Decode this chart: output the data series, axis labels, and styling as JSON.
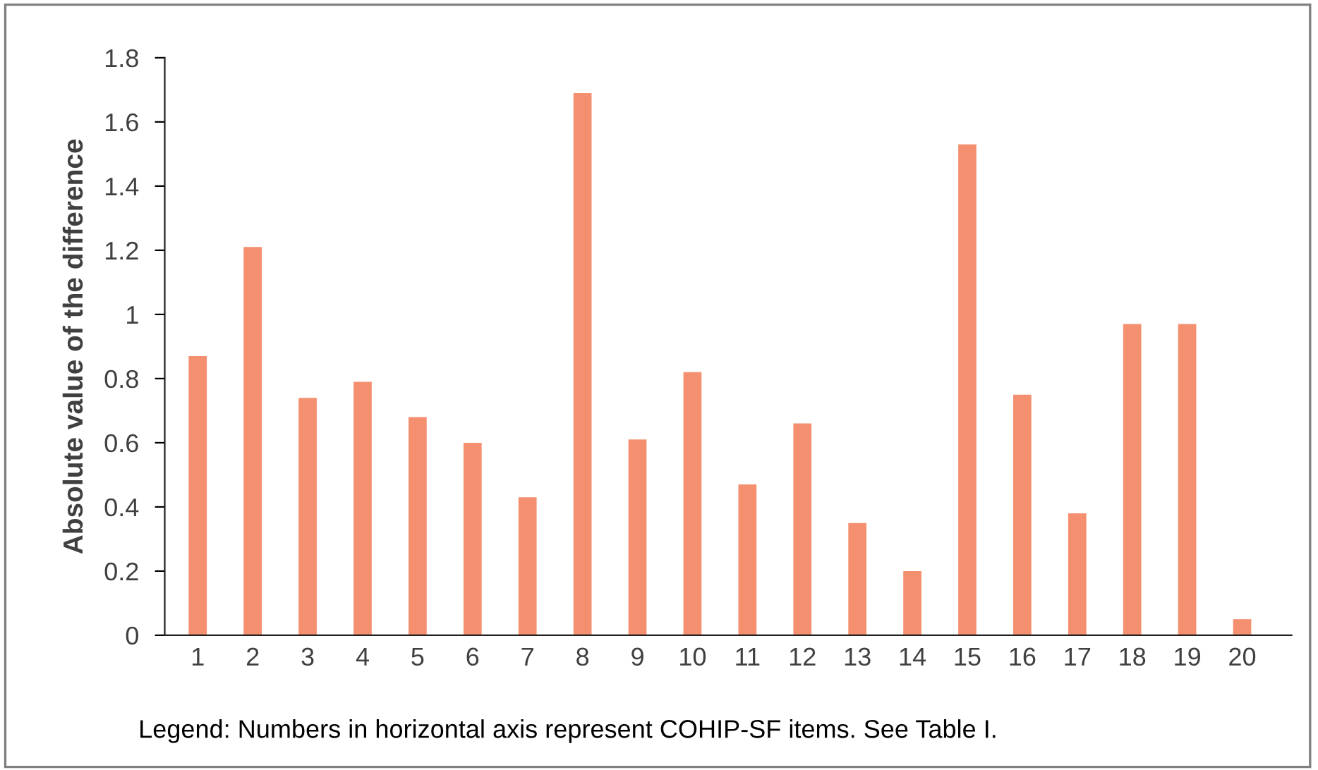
{
  "chart_data": {
    "type": "bar",
    "ylabel": "Absolute value of the difference",
    "categories": [
      "1",
      "2",
      "3",
      "4",
      "5",
      "6",
      "7",
      "8",
      "9",
      "10",
      "11",
      "12",
      "13",
      "14",
      "15",
      "16",
      "17",
      "18",
      "19",
      "20"
    ],
    "values": [
      0.87,
      1.21,
      0.74,
      0.79,
      0.68,
      0.6,
      0.43,
      1.69,
      0.61,
      0.82,
      0.47,
      0.66,
      0.35,
      0.2,
      1.53,
      0.75,
      0.38,
      0.97,
      0.97,
      0.05
    ],
    "color": "#f4906f",
    "ylim": [
      0,
      1.8
    ],
    "yticks": [
      {
        "value": 0,
        "label": "0"
      },
      {
        "value": 0.2,
        "label": "0.2"
      },
      {
        "value": 0.4,
        "label": "0.4"
      },
      {
        "value": 0.6,
        "label": "0.6"
      },
      {
        "value": 0.8,
        "label": "0.8"
      },
      {
        "value": 1,
        "label": "1"
      },
      {
        "value": 1.2,
        "label": "1.2"
      },
      {
        "value": 1.4,
        "label": "1.4"
      },
      {
        "value": 1.6,
        "label": "1.6"
      },
      {
        "value": 1.8,
        "label": "1.8"
      }
    ],
    "grid": false,
    "annotations": [
      "Legend: Numbers in horizontal axis represent COHIP-SF items. See Table I."
    ]
  }
}
